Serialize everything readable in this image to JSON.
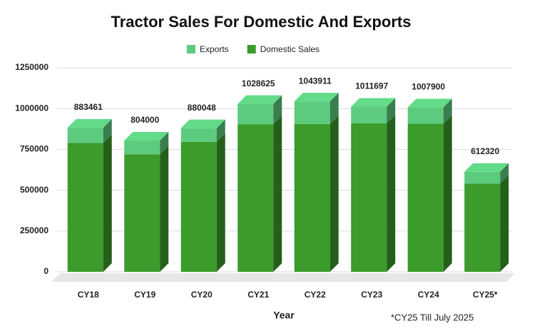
{
  "chart_data": {
    "type": "stacked-bar-3d",
    "title": "Tractor Sales For Domestic And Exports",
    "categories": [
      "CY18",
      "CY19",
      "CY20",
      "CY21",
      "CY22",
      "CY23",
      "CY24",
      "CY25*"
    ],
    "series": [
      {
        "name": "Domestic Sales",
        "color": "#3b9b2b",
        "values": [
          789000,
          720000,
          796000,
          904000,
          905000,
          910000,
          907000,
          541000
        ]
      },
      {
        "name": "Exports",
        "color": "#5ccb7e",
        "values": [
          94461,
          84000,
          84048,
          124625,
          138911,
          101697,
          100900,
          71320
        ]
      }
    ],
    "total_labels": [
      "883461",
      "804000",
      "880048",
      "1028625",
      "1043911",
      "1011697",
      "1007900",
      "612320"
    ],
    "ylim": [
      0,
      1250000
    ],
    "yticks": [
      0,
      250000,
      500000,
      750000,
      1000000,
      1250000
    ],
    "grid": true,
    "xlabel": "Year",
    "annotation": "*CY25 Till July 2025",
    "legend": "top"
  }
}
